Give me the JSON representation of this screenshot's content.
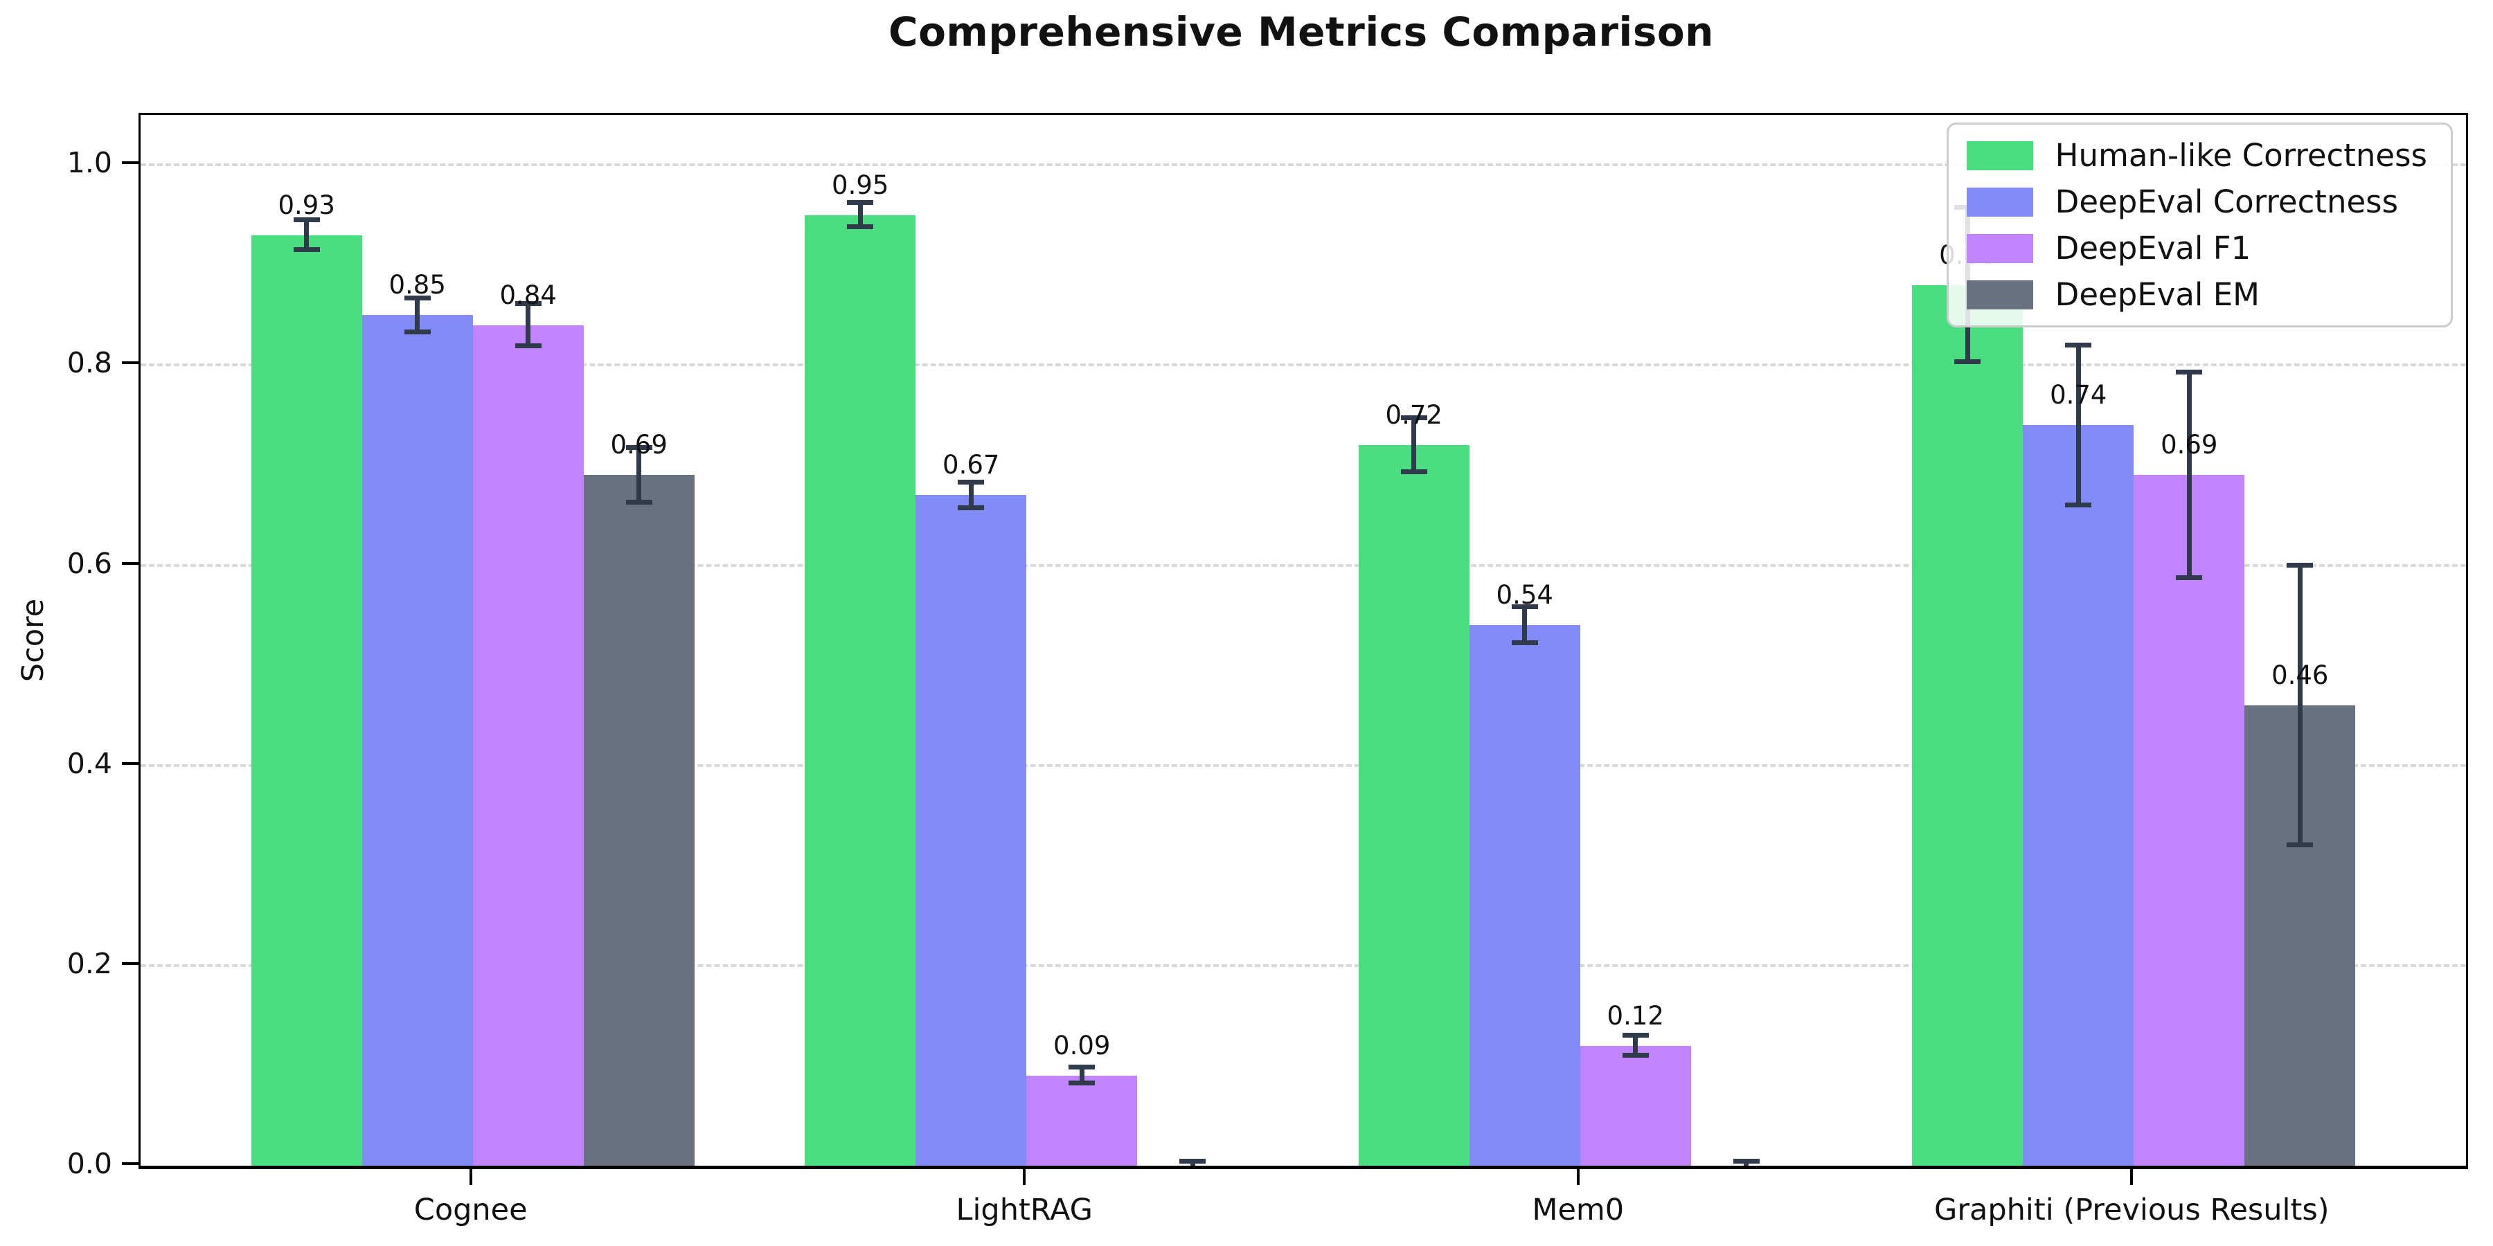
{
  "title": "Comprehensive Metrics Comparison",
  "chart_data": {
    "type": "bar",
    "title": "Comprehensive Metrics Comparison",
    "xlabel": "",
    "ylabel": "Score",
    "ylim": [
      0,
      1.05
    ],
    "yticks": [
      0.0,
      0.2,
      0.4,
      0.6,
      0.8,
      1.0
    ],
    "ytick_labels": [
      "0.0",
      "0.2",
      "0.4",
      "0.6",
      "0.8",
      "1.0"
    ],
    "grid": "horizontal-dashed",
    "grid_color": "#d9d9d9",
    "legend_position": "upper-right",
    "error_bar_color": "#2f3a4a",
    "categories": [
      "Cognee",
      "LightRAG",
      "Mem0",
      "Graphiti (Previous Results)"
    ],
    "series": [
      {
        "name": "Human-like Correctness",
        "color": "#4ade80",
        "values": [
          0.93,
          0.95,
          0.72,
          0.88
        ],
        "errors": [
          0.015,
          0.012,
          0.027,
          0.077
        ],
        "labels": [
          "0.93",
          "0.95",
          "0.72",
          "0.88"
        ]
      },
      {
        "name": "DeepEval Correctness",
        "color": "#818cf8",
        "values": [
          0.85,
          0.67,
          0.54,
          0.74
        ],
        "errors": [
          0.017,
          0.013,
          0.018,
          0.08
        ],
        "labels": [
          "0.85",
          "0.67",
          "0.54",
          "0.74"
        ]
      },
      {
        "name": "DeepEval F1",
        "color": "#c084fc",
        "values": [
          0.84,
          0.09,
          0.12,
          0.69
        ],
        "errors": [
          0.021,
          0.008,
          0.01,
          0.103
        ],
        "labels": [
          "0.84",
          "0.09",
          "0.12",
          "0.69"
        ]
      },
      {
        "name": "DeepEval EM",
        "color": "#6a7281",
        "values": [
          0.69,
          0.0,
          0.0,
          0.46
        ],
        "errors": [
          0.027,
          0.004,
          0.004,
          0.14
        ],
        "labels": [
          "0.69",
          "",
          "",
          "0.46"
        ]
      }
    ]
  }
}
